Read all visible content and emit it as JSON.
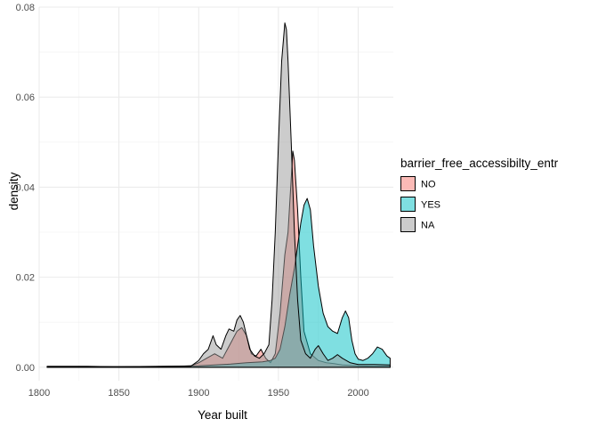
{
  "chart_data": {
    "type": "area",
    "subtype": "density",
    "title": "",
    "xlabel": "Year built",
    "ylabel": "density",
    "xlim": [
      1800,
      2022
    ],
    "ylim": [
      -0.003,
      0.08
    ],
    "x_ticks": [
      1800,
      1850,
      1900,
      1950,
      2000
    ],
    "y_ticks": [
      0.0,
      0.02,
      0.04,
      0.06,
      0.08
    ],
    "y_tick_labels": [
      "0.00",
      "0.02",
      "0.04",
      "0.06",
      "0.08"
    ],
    "grid": true,
    "theme": "minimal",
    "legend": {
      "title": "barrier_free_accessibilty_entr",
      "position": "right"
    },
    "series": [
      {
        "name": "NO",
        "color": "#F8766D",
        "points": [
          [
            1805,
            0.0002
          ],
          [
            1830,
            0.0002
          ],
          [
            1850,
            0.0001
          ],
          [
            1880,
            0.0001
          ],
          [
            1895,
            0.0003
          ],
          [
            1900,
            0.001
          ],
          [
            1905,
            0.002
          ],
          [
            1910,
            0.003
          ],
          [
            1915,
            0.002
          ],
          [
            1918,
            0.004
          ],
          [
            1921,
            0.006
          ],
          [
            1924,
            0.008
          ],
          [
            1927,
            0.0088
          ],
          [
            1930,
            0.007
          ],
          [
            1933,
            0.003
          ],
          [
            1936,
            0.0025
          ],
          [
            1939,
            0.004
          ],
          [
            1942,
            0.002
          ],
          [
            1945,
            0.001
          ],
          [
            1948,
            0.003
          ],
          [
            1951,
            0.012
          ],
          [
            1954,
            0.025
          ],
          [
            1956,
            0.03
          ],
          [
            1958,
            0.042
          ],
          [
            1959,
            0.048
          ],
          [
            1960,
            0.046
          ],
          [
            1962,
            0.035
          ],
          [
            1964,
            0.02
          ],
          [
            1966,
            0.008
          ],
          [
            1970,
            0.003
          ],
          [
            1975,
            0.0015
          ],
          [
            1980,
            0.001
          ],
          [
            1985,
            0.0008
          ],
          [
            1990,
            0.0005
          ],
          [
            2000,
            0.0003
          ],
          [
            2010,
            0.0002
          ],
          [
            2020,
            0.0002
          ]
        ]
      },
      {
        "name": "YES",
        "color": "#00BFC4",
        "points": [
          [
            1805,
            0.0001
          ],
          [
            1850,
            0.0001
          ],
          [
            1900,
            0.0003
          ],
          [
            1920,
            0.0007
          ],
          [
            1930,
            0.001
          ],
          [
            1940,
            0.0012
          ],
          [
            1945,
            0.0015
          ],
          [
            1948,
            0.002
          ],
          [
            1951,
            0.004
          ],
          [
            1954,
            0.009
          ],
          [
            1957,
            0.016
          ],
          [
            1960,
            0.022
          ],
          [
            1962,
            0.027
          ],
          [
            1964,
            0.032
          ],
          [
            1966,
            0.036
          ],
          [
            1968,
            0.0375
          ],
          [
            1970,
            0.035
          ],
          [
            1972,
            0.027
          ],
          [
            1975,
            0.018
          ],
          [
            1978,
            0.012
          ],
          [
            1981,
            0.009
          ],
          [
            1984,
            0.008
          ],
          [
            1987,
            0.0075
          ],
          [
            1990,
            0.011
          ],
          [
            1992,
            0.0125
          ],
          [
            1994,
            0.011
          ],
          [
            1996,
            0.006
          ],
          [
            1998,
            0.003
          ],
          [
            2000,
            0.0018
          ],
          [
            2003,
            0.0015
          ],
          [
            2006,
            0.002
          ],
          [
            2009,
            0.003
          ],
          [
            2012,
            0.0045
          ],
          [
            2015,
            0.004
          ],
          [
            2018,
            0.0025
          ],
          [
            2020,
            0.002
          ]
        ]
      },
      {
        "name": "NA",
        "color": "#999999",
        "points": [
          [
            1805,
            0.0001
          ],
          [
            1850,
            0.0001
          ],
          [
            1895,
            0.0002
          ],
          [
            1900,
            0.0015
          ],
          [
            1903,
            0.003
          ],
          [
            1906,
            0.004
          ],
          [
            1909,
            0.007
          ],
          [
            1911,
            0.005
          ],
          [
            1914,
            0.004
          ],
          [
            1917,
            0.007
          ],
          [
            1919,
            0.0085
          ],
          [
            1922,
            0.008
          ],
          [
            1924,
            0.0105
          ],
          [
            1926,
            0.0115
          ],
          [
            1928,
            0.01
          ],
          [
            1930,
            0.007
          ],
          [
            1932,
            0.004
          ],
          [
            1935,
            0.0025
          ],
          [
            1938,
            0.002
          ],
          [
            1941,
            0.003
          ],
          [
            1944,
            0.005
          ],
          [
            1946,
            0.015
          ],
          [
            1948,
            0.03
          ],
          [
            1950,
            0.05
          ],
          [
            1952,
            0.068
          ],
          [
            1954,
            0.0765
          ],
          [
            1955,
            0.075
          ],
          [
            1956,
            0.068
          ],
          [
            1958,
            0.05
          ],
          [
            1960,
            0.03
          ],
          [
            1962,
            0.015
          ],
          [
            1964,
            0.006
          ],
          [
            1967,
            0.003
          ],
          [
            1970,
            0.002
          ],
          [
            1973,
            0.004
          ],
          [
            1975,
            0.0048
          ],
          [
            1978,
            0.003
          ],
          [
            1981,
            0.0015
          ],
          [
            1984,
            0.002
          ],
          [
            1987,
            0.0028
          ],
          [
            1990,
            0.002
          ],
          [
            1995,
            0.001
          ],
          [
            2000,
            0.0006
          ],
          [
            2010,
            0.0006
          ],
          [
            2020,
            0.0005
          ]
        ]
      }
    ]
  }
}
